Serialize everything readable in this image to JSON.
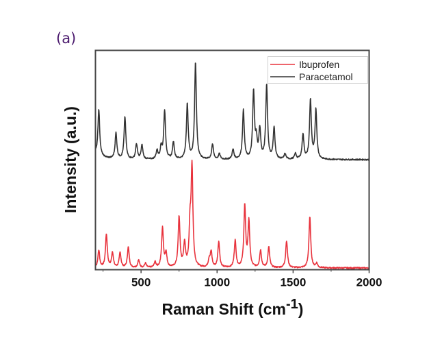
{
  "panel_label": "(a)",
  "chart_data": {
    "type": "line",
    "title": "",
    "xlabel": "Raman Shift (cm-1)",
    "xlabel_main": "Raman Shift (cm",
    "xlabel_sup": "-1",
    "xlabel_close": ")",
    "ylabel": "Intensity (a.u.)",
    "xlim": [
      200,
      2000
    ],
    "x_ticks": [
      500,
      1000,
      1500,
      2000
    ],
    "x_tick_labels": [
      "500",
      "1000",
      "1500",
      "2000"
    ],
    "y_ticks": [],
    "grid": false,
    "legend_position": "upper right",
    "series": [
      {
        "name": "Ibuprofen",
        "color": "#e8323c",
        "offset_baseline": 0.0,
        "peaks": [
          {
            "x": 222,
            "h": 0.16
          },
          {
            "x": 272,
            "h": 0.31
          },
          {
            "x": 312,
            "h": 0.14
          },
          {
            "x": 362,
            "h": 0.14
          },
          {
            "x": 416,
            "h": 0.19
          },
          {
            "x": 484,
            "h": 0.07
          },
          {
            "x": 529,
            "h": 0.04
          },
          {
            "x": 592,
            "h": 0.05
          },
          {
            "x": 641,
            "h": 0.37
          },
          {
            "x": 664,
            "h": 0.13
          },
          {
            "x": 750,
            "h": 0.47
          },
          {
            "x": 786,
            "h": 0.22
          },
          {
            "x": 822,
            "h": 0.35
          },
          {
            "x": 835,
            "h": 0.91
          },
          {
            "x": 948,
            "h": 0.07
          },
          {
            "x": 961,
            "h": 0.14
          },
          {
            "x": 1011,
            "h": 0.24
          },
          {
            "x": 1119,
            "h": 0.25
          },
          {
            "x": 1182,
            "h": 0.57
          },
          {
            "x": 1209,
            "h": 0.42
          },
          {
            "x": 1286,
            "h": 0.16
          },
          {
            "x": 1340,
            "h": 0.19
          },
          {
            "x": 1457,
            "h": 0.25
          },
          {
            "x": 1610,
            "h": 0.47
          },
          {
            "x": 1655,
            "h": 0.04
          }
        ]
      },
      {
        "name": "Paracetamol",
        "color": "#333333",
        "offset_baseline": 1.0,
        "peaks": [
          {
            "x": 222,
            "h": 0.43
          },
          {
            "x": 335,
            "h": 0.24
          },
          {
            "x": 394,
            "h": 0.39
          },
          {
            "x": 470,
            "h": 0.14
          },
          {
            "x": 506,
            "h": 0.13
          },
          {
            "x": 605,
            "h": 0.08
          },
          {
            "x": 632,
            "h": 0.11
          },
          {
            "x": 655,
            "h": 0.45
          },
          {
            "x": 713,
            "h": 0.16
          },
          {
            "x": 804,
            "h": 0.51
          },
          {
            "x": 858,
            "h": 0.9
          },
          {
            "x": 970,
            "h": 0.14
          },
          {
            "x": 1015,
            "h": 0.05
          },
          {
            "x": 1105,
            "h": 0.09
          },
          {
            "x": 1173,
            "h": 0.45
          },
          {
            "x": 1240,
            "h": 0.62
          },
          {
            "x": 1258,
            "h": 0.16
          },
          {
            "x": 1281,
            "h": 0.27
          },
          {
            "x": 1326,
            "h": 0.69
          },
          {
            "x": 1375,
            "h": 0.29
          },
          {
            "x": 1447,
            "h": 0.05
          },
          {
            "x": 1515,
            "h": 0.05
          },
          {
            "x": 1565,
            "h": 0.23
          },
          {
            "x": 1614,
            "h": 0.55
          },
          {
            "x": 1650,
            "h": 0.46
          }
        ]
      }
    ]
  },
  "legend": {
    "items": [
      {
        "label": "Ibuprofen",
        "color": "#e8323c"
      },
      {
        "label": "Paracetamol",
        "color": "#333333"
      }
    ]
  },
  "colors": {
    "axis": "#444444",
    "panel_label": "#4b1a6e"
  }
}
